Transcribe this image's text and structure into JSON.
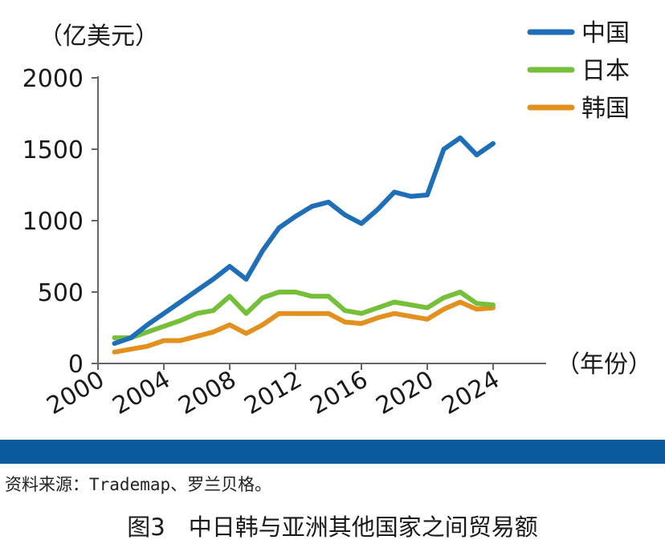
{
  "chart_data": {
    "type": "line",
    "title": "",
    "ylabel": "（亿美元）",
    "xlabel": "（年份）",
    "ylim": [
      0,
      2000
    ],
    "xlim": [
      2000,
      2024
    ],
    "y_ticks": [
      "0",
      "500",
      "1000",
      "1500",
      "2000"
    ],
    "x_ticks": [
      "2000",
      "2004",
      "2008",
      "2012",
      "2016",
      "2020",
      "2024"
    ],
    "legend_position": "top-right",
    "grid": false,
    "x": [
      2001,
      2002,
      2003,
      2004,
      2005,
      2006,
      2007,
      2008,
      2009,
      2010,
      2011,
      2012,
      2013,
      2014,
      2015,
      2016,
      2017,
      2018,
      2019,
      2020,
      2021,
      2022,
      2023,
      2024
    ],
    "series": [
      {
        "name": "中国",
        "color": "#1f6fb8",
        "values": [
          140,
          180,
          270,
          350,
          430,
          510,
          590,
          680,
          590,
          790,
          950,
          1030,
          1100,
          1130,
          1040,
          980,
          1080,
          1200,
          1170,
          1180,
          1500,
          1580,
          1460,
          1540
        ]
      },
      {
        "name": "日本",
        "color": "#76bf3a",
        "values": [
          180,
          180,
          220,
          260,
          300,
          350,
          370,
          470,
          350,
          460,
          500,
          500,
          470,
          470,
          370,
          350,
          390,
          430,
          410,
          390,
          460,
          500,
          420,
          410
        ]
      },
      {
        "name": "韩国",
        "color": "#e2901e",
        "values": [
          80,
          100,
          120,
          160,
          160,
          190,
          220,
          270,
          210,
          270,
          350,
          350,
          350,
          350,
          290,
          280,
          320,
          350,
          330,
          310,
          380,
          430,
          380,
          390
        ]
      }
    ]
  },
  "source_text": "资料来源：Trademap、罗兰贝格。",
  "caption": "图3　中日韩与亚洲其他国家之间贸易额"
}
